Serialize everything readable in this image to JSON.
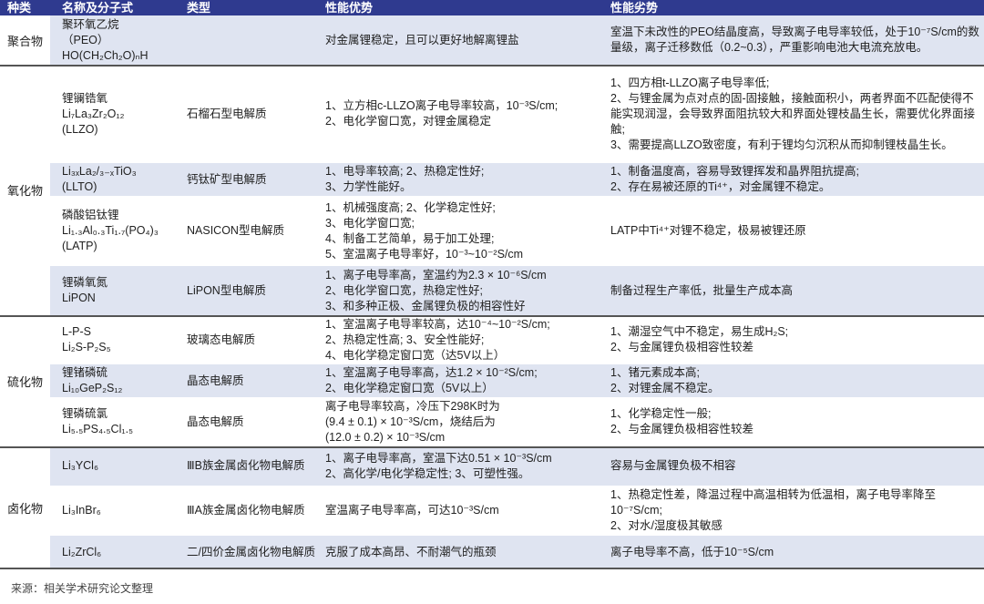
{
  "header": {
    "category": "种类",
    "name": "名称及分子式",
    "type": "类型",
    "advantages": "性能优势",
    "disadvantages": "性能劣势"
  },
  "colors": {
    "header_bg": "#2f3a8f",
    "row_band": "#dfe4f1"
  },
  "categories": [
    {
      "label": "聚合物"
    },
    {
      "label": "氧化物"
    },
    {
      "label": "硫化物"
    },
    {
      "label": "卤化物"
    }
  ],
  "rows": [
    {
      "name": "聚环氧乙烷\n（PEO）\nHO(CH₂Ch₂O)ₙH",
      "type": "",
      "advantages": "对金属锂稳定，且可以更好地解离锂盐",
      "disadvantages": "室温下未改性的PEO结晶度高，导致离子电导率较低，处于10⁻⁷S/cm的数量级，离子迁移数低（0.2~0.3），严重影响电池大电流充放电。"
    },
    {
      "name": "锂镧锆氧\nLi₇La₃Zr₂O₁₂\n(LLZO)",
      "type": "石榴石型电解质",
      "advantages": "1、立方相c-LLZO离子电导率较高，10⁻³S/cm;\n2、电化学窗口宽，对锂金属稳定",
      "disadvantages": "1、四方相t-LLZO离子电导率低;\n2、与锂金属为点对点的固-固接触，接触面积小，两者界面不匹配使得不能实现润湿，会导致界面阻抗较大和界面处锂枝晶生长，需要优化界面接触;\n3、需要提高LLZO致密度，有利于锂均匀沉积从而抑制锂枝晶生长。"
    },
    {
      "name": "Li₃ₓLa₂/₃₋ₓTiO₃\n(LLTO)",
      "type": "钙钛矿型电解质",
      "advantages": "1、电导率较高; 2、热稳定性好;\n3、力学性能好。",
      "disadvantages": "1、制备温度高，容易导致锂挥发和晶界阻抗提高;\n2、存在易被还原的Ti⁴⁺，对金属锂不稳定。"
    },
    {
      "name": "磷酸铝钛锂\nLi₁.₃Al₀.₃Ti₁.₇(PO₄)₃\n(LATP)",
      "type": "NASICON型电解质",
      "advantages": "1、机械强度高; 2、化学稳定性好;\n3、电化学窗口宽;\n4、制备工艺简单，易于加工处理;\n5、室温离子电导率好，10⁻³~10⁻²S/cm",
      "disadvantages": "LATP中Ti⁴⁺对锂不稳定，极易被锂还原"
    },
    {
      "name": "锂磷氧氮\nLiPON",
      "type": "LiPON型电解质",
      "advantages": "1、离子电导率高，室温约为2.3 × 10⁻⁶S/cm\n2、电化学窗口宽，热稳定性好;\n3、和多种正极、金属锂负极的相容性好",
      "disadvantages": "制备过程生产率低，批量生产成本高"
    },
    {
      "name": "L-P-S\nLi₂S-P₂S₅",
      "type": "玻璃态电解质",
      "advantages": "1、室温离子电导率较高，达10⁻⁴~10⁻²S/cm;\n2、热稳定性高; 3、安全性能好;\n4、电化学稳定窗口宽（达5V以上）",
      "disadvantages": "1、潮湿空气中不稳定，易生成H₂S;\n2、与金属锂负极相容性较差"
    },
    {
      "name": "锂锗磷硫\nLi₁₀GeP₂S₁₂",
      "type": "晶态电解质",
      "advantages": "1、室温离子电导率高，达1.2 × 10⁻²S/cm;\n2、电化学稳定窗口宽（5V以上）",
      "disadvantages": "1、锗元素成本高;\n2、对锂金属不稳定。"
    },
    {
      "name": "锂磷硫氯\nLi₅.₅PS₄.₅Cl₁.₅",
      "type": "晶态电解质",
      "advantages": "离子电导率较高，冷压下298K时为\n(9.4 ± 0.1) × 10⁻³S/cm，烧结后为\n(12.0 ± 0.2) × 10⁻³S/cm",
      "disadvantages": "1、化学稳定性一般;\n2、与金属锂负极相容性较差"
    },
    {
      "name": "Li₃YCl₆",
      "type": "ⅢB族金属卤化物电解质",
      "advantages": "1、离子电导率高，室温下达0.51 × 10⁻³S/cm\n2、高化学/电化学稳定性; 3、可塑性强。",
      "disadvantages": "容易与金属锂负极不相容"
    },
    {
      "name": "Li₃InBr₆",
      "type": "ⅢA族金属卤化物电解质",
      "advantages": "室温离子电导率高，可达10⁻³S/cm",
      "disadvantages": "1、热稳定性差，降温过程中高温相转为低温相，离子电导率降至10⁻⁷S/cm;\n2、对水/湿度极其敏感"
    },
    {
      "name": "Li₂ZrCl₆",
      "type": "二/四价金属卤化物电解质",
      "advantages": "克服了成本高昂、不耐潮气的瓶颈",
      "disadvantages": "离子电导率不高，低于10⁻⁵S/cm"
    }
  ],
  "source": "来源：相关学术研究论文整理"
}
